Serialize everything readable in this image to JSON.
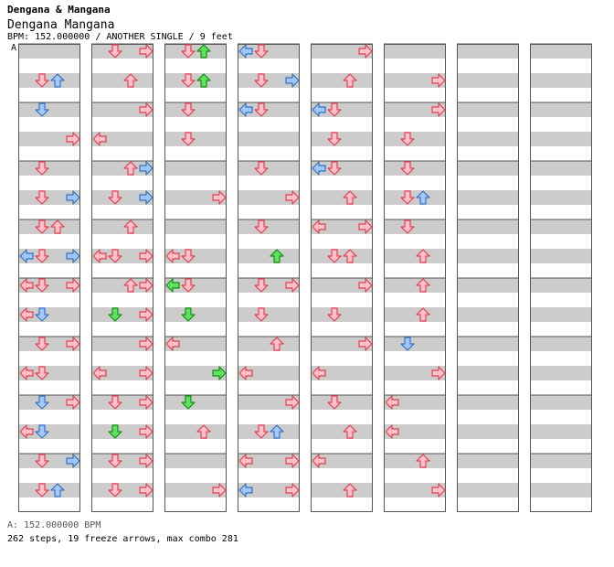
{
  "header": {
    "artist": "Dengana & Mangana",
    "title": "Dengana Mangana",
    "meta": "BPM: 152.000000 / ANOTHER SINGLE / 9 feet",
    "bpm_marker": "A"
  },
  "footer": {
    "bpm_legend": "A: 152.000000 BPM",
    "stats": "262 steps, 19 freeze arrows, max combo 281"
  },
  "colors": {
    "red_arrow": "#ffc0c8",
    "red_outline": "#e04050",
    "blue_arrow": "#a0c8f8",
    "blue_outline": "#3870c0",
    "green_arrow": "#60e060",
    "green_outline": "#109010",
    "freeze_fill": "#c8f8c8",
    "freeze_outline": "#50a050",
    "stripe": "#cccccc",
    "border": "#555555"
  },
  "chart_data": {
    "type": "step-chart",
    "mode": "ANOTHER SINGLE",
    "difficulty_feet": 9,
    "bpm": 152.0,
    "lanes": [
      "left",
      "down",
      "up",
      "right"
    ],
    "columns": 8,
    "measures_per_column": 8,
    "total_steps": 262,
    "freeze_arrows": 19,
    "max_combo": 281,
    "notes": [
      [
        0,
        1,
        1,
        "red"
      ],
      [
        0,
        1,
        2,
        "blue"
      ],
      [
        0,
        2,
        1,
        "blue"
      ],
      [
        0,
        3,
        3,
        "red"
      ],
      [
        0,
        4,
        1,
        "red"
      ],
      [
        0,
        5,
        1,
        "red"
      ],
      [
        0,
        5,
        3,
        "blue"
      ],
      [
        0,
        6,
        1,
        "red"
      ],
      [
        0,
        6,
        2,
        "red"
      ],
      [
        0,
        7,
        1,
        "red"
      ],
      [
        0,
        7,
        0,
        "blue"
      ],
      [
        0,
        7,
        3,
        "blue"
      ],
      [
        0,
        8,
        0,
        "red"
      ],
      [
        0,
        8,
        1,
        "red"
      ],
      [
        0,
        8,
        3,
        "red"
      ],
      [
        0,
        9,
        0,
        "red"
      ],
      [
        0,
        9,
        1,
        "blue"
      ],
      [
        0,
        10,
        1,
        "red"
      ],
      [
        0,
        10,
        3,
        "red"
      ],
      [
        0,
        11,
        0,
        "red"
      ],
      [
        0,
        11,
        1,
        "red"
      ],
      [
        0,
        12,
        1,
        "blue"
      ],
      [
        0,
        12,
        3,
        "red"
      ],
      [
        0,
        13,
        1,
        "blue"
      ],
      [
        0,
        13,
        0,
        "red"
      ],
      [
        0,
        14,
        1,
        "red"
      ],
      [
        0,
        14,
        3,
        "blue"
      ],
      [
        0,
        15,
        1,
        "red"
      ],
      [
        0,
        15,
        2,
        "blue"
      ],
      [
        1,
        0,
        1,
        "red"
      ],
      [
        1,
        0,
        3,
        "red"
      ],
      [
        1,
        1,
        2,
        "red"
      ],
      [
        1,
        2,
        3,
        "red"
      ],
      [
        1,
        3,
        0,
        "red"
      ],
      [
        1,
        4,
        2,
        "red"
      ],
      [
        1,
        4,
        3,
        "blue"
      ],
      [
        1,
        5,
        1,
        "red"
      ],
      [
        1,
        5,
        3,
        "blue"
      ],
      [
        1,
        6,
        2,
        "red"
      ],
      [
        1,
        7,
        0,
        "red"
      ],
      [
        1,
        7,
        1,
        "red"
      ],
      [
        1,
        7,
        3,
        "red"
      ],
      [
        1,
        8,
        2,
        "red"
      ],
      [
        1,
        8,
        3,
        "red"
      ],
      [
        1,
        9,
        1,
        "green"
      ],
      [
        1,
        9,
        3,
        "red"
      ],
      [
        1,
        10,
        3,
        "red"
      ],
      [
        1,
        11,
        0,
        "red"
      ],
      [
        1,
        11,
        3,
        "red"
      ],
      [
        1,
        12,
        1,
        "red"
      ],
      [
        1,
        12,
        3,
        "red"
      ],
      [
        1,
        13,
        1,
        "green"
      ],
      [
        1,
        13,
        3,
        "red"
      ],
      [
        1,
        14,
        1,
        "red"
      ],
      [
        1,
        14,
        3,
        "red"
      ],
      [
        1,
        15,
        1,
        "red"
      ],
      [
        1,
        15,
        3,
        "red"
      ],
      [
        2,
        0,
        2,
        "green"
      ],
      [
        2,
        0,
        1,
        "red"
      ],
      [
        2,
        1,
        1,
        "red"
      ],
      [
        2,
        1,
        2,
        "green"
      ],
      [
        2,
        2,
        1,
        "red"
      ],
      [
        2,
        3,
        1,
        "red"
      ],
      [
        2,
        5,
        3,
        "red"
      ],
      [
        2,
        7,
        0,
        "red"
      ],
      [
        2,
        7,
        1,
        "red"
      ],
      [
        2,
        8,
        0,
        "green"
      ],
      [
        2,
        8,
        1,
        "red"
      ],
      [
        2,
        9,
        1,
        "green"
      ],
      [
        2,
        10,
        0,
        "red"
      ],
      [
        2,
        11,
        3,
        "green"
      ],
      [
        2,
        12,
        1,
        "green"
      ],
      [
        2,
        13,
        2,
        "red"
      ],
      [
        2,
        15,
        3,
        "red"
      ],
      [
        3,
        0,
        0,
        "blue"
      ],
      [
        3,
        0,
        1,
        "red"
      ],
      [
        3,
        1,
        1,
        "red"
      ],
      [
        3,
        1,
        3,
        "blue"
      ],
      [
        3,
        2,
        0,
        "blue"
      ],
      [
        3,
        2,
        1,
        "red"
      ],
      [
        3,
        4,
        1,
        "red"
      ],
      [
        3,
        5,
        3,
        "red"
      ],
      [
        3,
        6,
        1,
        "red"
      ],
      [
        3,
        7,
        2,
        "green"
      ],
      [
        3,
        8,
        1,
        "red"
      ],
      [
        3,
        8,
        3,
        "red"
      ],
      [
        3,
        9,
        1,
        "red"
      ],
      [
        3,
        10,
        2,
        "red"
      ],
      [
        3,
        11,
        0,
        "red"
      ],
      [
        3,
        12,
        3,
        "red"
      ],
      [
        3,
        13,
        1,
        "red"
      ],
      [
        3,
        13,
        2,
        "blue"
      ],
      [
        3,
        14,
        0,
        "red"
      ],
      [
        3,
        14,
        3,
        "red"
      ],
      [
        3,
        15,
        0,
        "blue"
      ],
      [
        3,
        15,
        3,
        "red"
      ],
      [
        4,
        0,
        3,
        "red"
      ],
      [
        4,
        1,
        2,
        "red"
      ],
      [
        4,
        2,
        0,
        "blue"
      ],
      [
        4,
        2,
        1,
        "red"
      ],
      [
        4,
        3,
        1,
        "red"
      ],
      [
        4,
        4,
        0,
        "blue"
      ],
      [
        4,
        4,
        1,
        "red"
      ],
      [
        4,
        5,
        2,
        "red"
      ],
      [
        4,
        6,
        0,
        "red"
      ],
      [
        4,
        6,
        3,
        "red"
      ],
      [
        4,
        7,
        1,
        "red"
      ],
      [
        4,
        7,
        2,
        "red"
      ],
      [
        4,
        8,
        3,
        "red"
      ],
      [
        4,
        9,
        1,
        "red"
      ],
      [
        4,
        10,
        3,
        "red"
      ],
      [
        4,
        11,
        0,
        "red"
      ],
      [
        4,
        12,
        1,
        "red"
      ],
      [
        4,
        13,
        2,
        "red"
      ],
      [
        4,
        14,
        0,
        "red"
      ],
      [
        4,
        15,
        2,
        "red"
      ],
      [
        5,
        1,
        3,
        "red"
      ],
      [
        5,
        2,
        3,
        "red"
      ],
      [
        5,
        3,
        1,
        "red"
      ],
      [
        5,
        4,
        1,
        "red"
      ],
      [
        5,
        5,
        1,
        "red"
      ],
      [
        5,
        5,
        2,
        "blue"
      ],
      [
        5,
        6,
        1,
        "red"
      ],
      [
        5,
        7,
        2,
        "red"
      ],
      [
        5,
        8,
        2,
        "red"
      ],
      [
        5,
        9,
        2,
        "red"
      ],
      [
        5,
        10,
        1,
        "blue"
      ],
      [
        5,
        11,
        3,
        "red"
      ],
      [
        5,
        12,
        0,
        "red"
      ],
      [
        5,
        13,
        0,
        "red"
      ],
      [
        5,
        14,
        2,
        "red"
      ],
      [
        5,
        15,
        3,
        "red"
      ]
    ]
  }
}
